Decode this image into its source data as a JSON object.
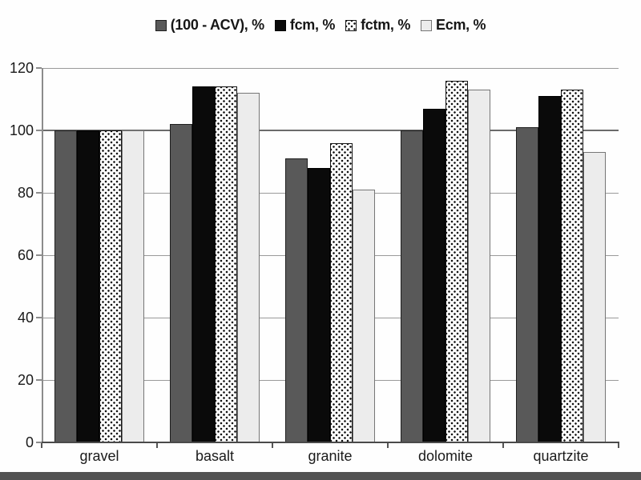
{
  "chart_data": {
    "type": "bar",
    "title": "",
    "xlabel": "",
    "ylabel": "",
    "categories": [
      "gravel",
      "basalt",
      "granite",
      "dolomite",
      "quartzite"
    ],
    "series": [
      {
        "name": "(100 - ACV), %",
        "pattern": "darkgray",
        "color": "#595959",
        "values": [
          100,
          102,
          91,
          100,
          101
        ]
      },
      {
        "name": "fcm, %",
        "pattern": "black",
        "color": "#0a0a0a",
        "values": [
          100,
          114,
          88,
          107,
          111
        ]
      },
      {
        "name": "fctm, %",
        "pattern": "dots",
        "color": "#ffffff",
        "values": [
          100,
          114,
          96,
          116,
          113
        ]
      },
      {
        "name": "Ecm, %",
        "pattern": "light",
        "color": "#ececec",
        "values": [
          100,
          112,
          81,
          113,
          93
        ]
      }
    ],
    "ylim": [
      0,
      120
    ],
    "yticks": [
      0,
      20,
      40,
      60,
      80,
      100,
      120
    ],
    "grid": true,
    "major_gridline_at": 100,
    "legend_position": "top-center"
  },
  "style_colors": {
    "gridline": "#9a9a9a",
    "major_gridline": "#6b6b6b",
    "axis_text": "#1a1a1a",
    "bottom_strip": "#525252"
  }
}
